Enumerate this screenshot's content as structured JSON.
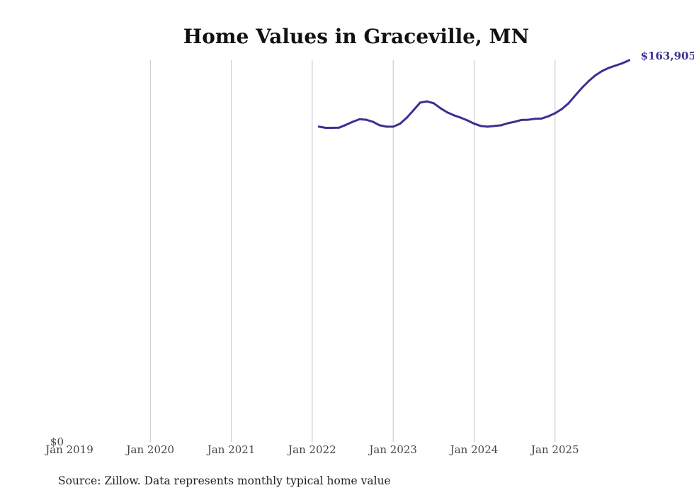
{
  "chart_data": {
    "type": "line",
    "title": "Home Values in Graceville, MN",
    "source": "Source: Zillow. Data represents monthly typical home value",
    "xlabel": "",
    "ylabel": "",
    "x_ticks": [
      "Jan 2019",
      "Jan 2020",
      "Jan 2021",
      "Jan 2022",
      "Jan 2023",
      "Jan 2024",
      "Jan 2025"
    ],
    "y_ticks": [
      "$0"
    ],
    "xlim": [
      "2019-01",
      "2025-12"
    ],
    "ylim": [
      0,
      163905
    ],
    "grid": "vertical",
    "legend": "none",
    "line_color": "#3a3291",
    "end_label": "$163,905",
    "series": [
      {
        "x": [
          "2022-02",
          "2022-03",
          "2022-04",
          "2022-05",
          "2022-06",
          "2022-07",
          "2022-08",
          "2022-09",
          "2022-10",
          "2022-11",
          "2022-12",
          "2023-01",
          "2023-02",
          "2023-03",
          "2023-04",
          "2023-05",
          "2023-06",
          "2023-07",
          "2023-08",
          "2023-09",
          "2023-10",
          "2023-11",
          "2023-12",
          "2024-01",
          "2024-02",
          "2024-03",
          "2024-04",
          "2024-05",
          "2024-06",
          "2024-07",
          "2024-08",
          "2024-09",
          "2024-10",
          "2024-11",
          "2024-12",
          "2025-01",
          "2025-02",
          "2025-03",
          "2025-04",
          "2025-05",
          "2025-06",
          "2025-07",
          "2025-08",
          "2025-09",
          "2025-10",
          "2025-11",
          "2025-12"
        ],
        "values": [
          135200,
          134700,
          134700,
          134800,
          136000,
          137300,
          138400,
          138200,
          137300,
          135800,
          135200,
          135200,
          136400,
          139000,
          142300,
          145600,
          146100,
          145300,
          143200,
          141400,
          140100,
          139100,
          137900,
          136500,
          135500,
          135200,
          135500,
          135800,
          136700,
          137300,
          138100,
          138200,
          138600,
          138700,
          139700,
          141000,
          142800,
          145300,
          148700,
          152000,
          154900,
          157400,
          159300,
          160600,
          161600,
          162600,
          163905
        ]
      }
    ]
  }
}
